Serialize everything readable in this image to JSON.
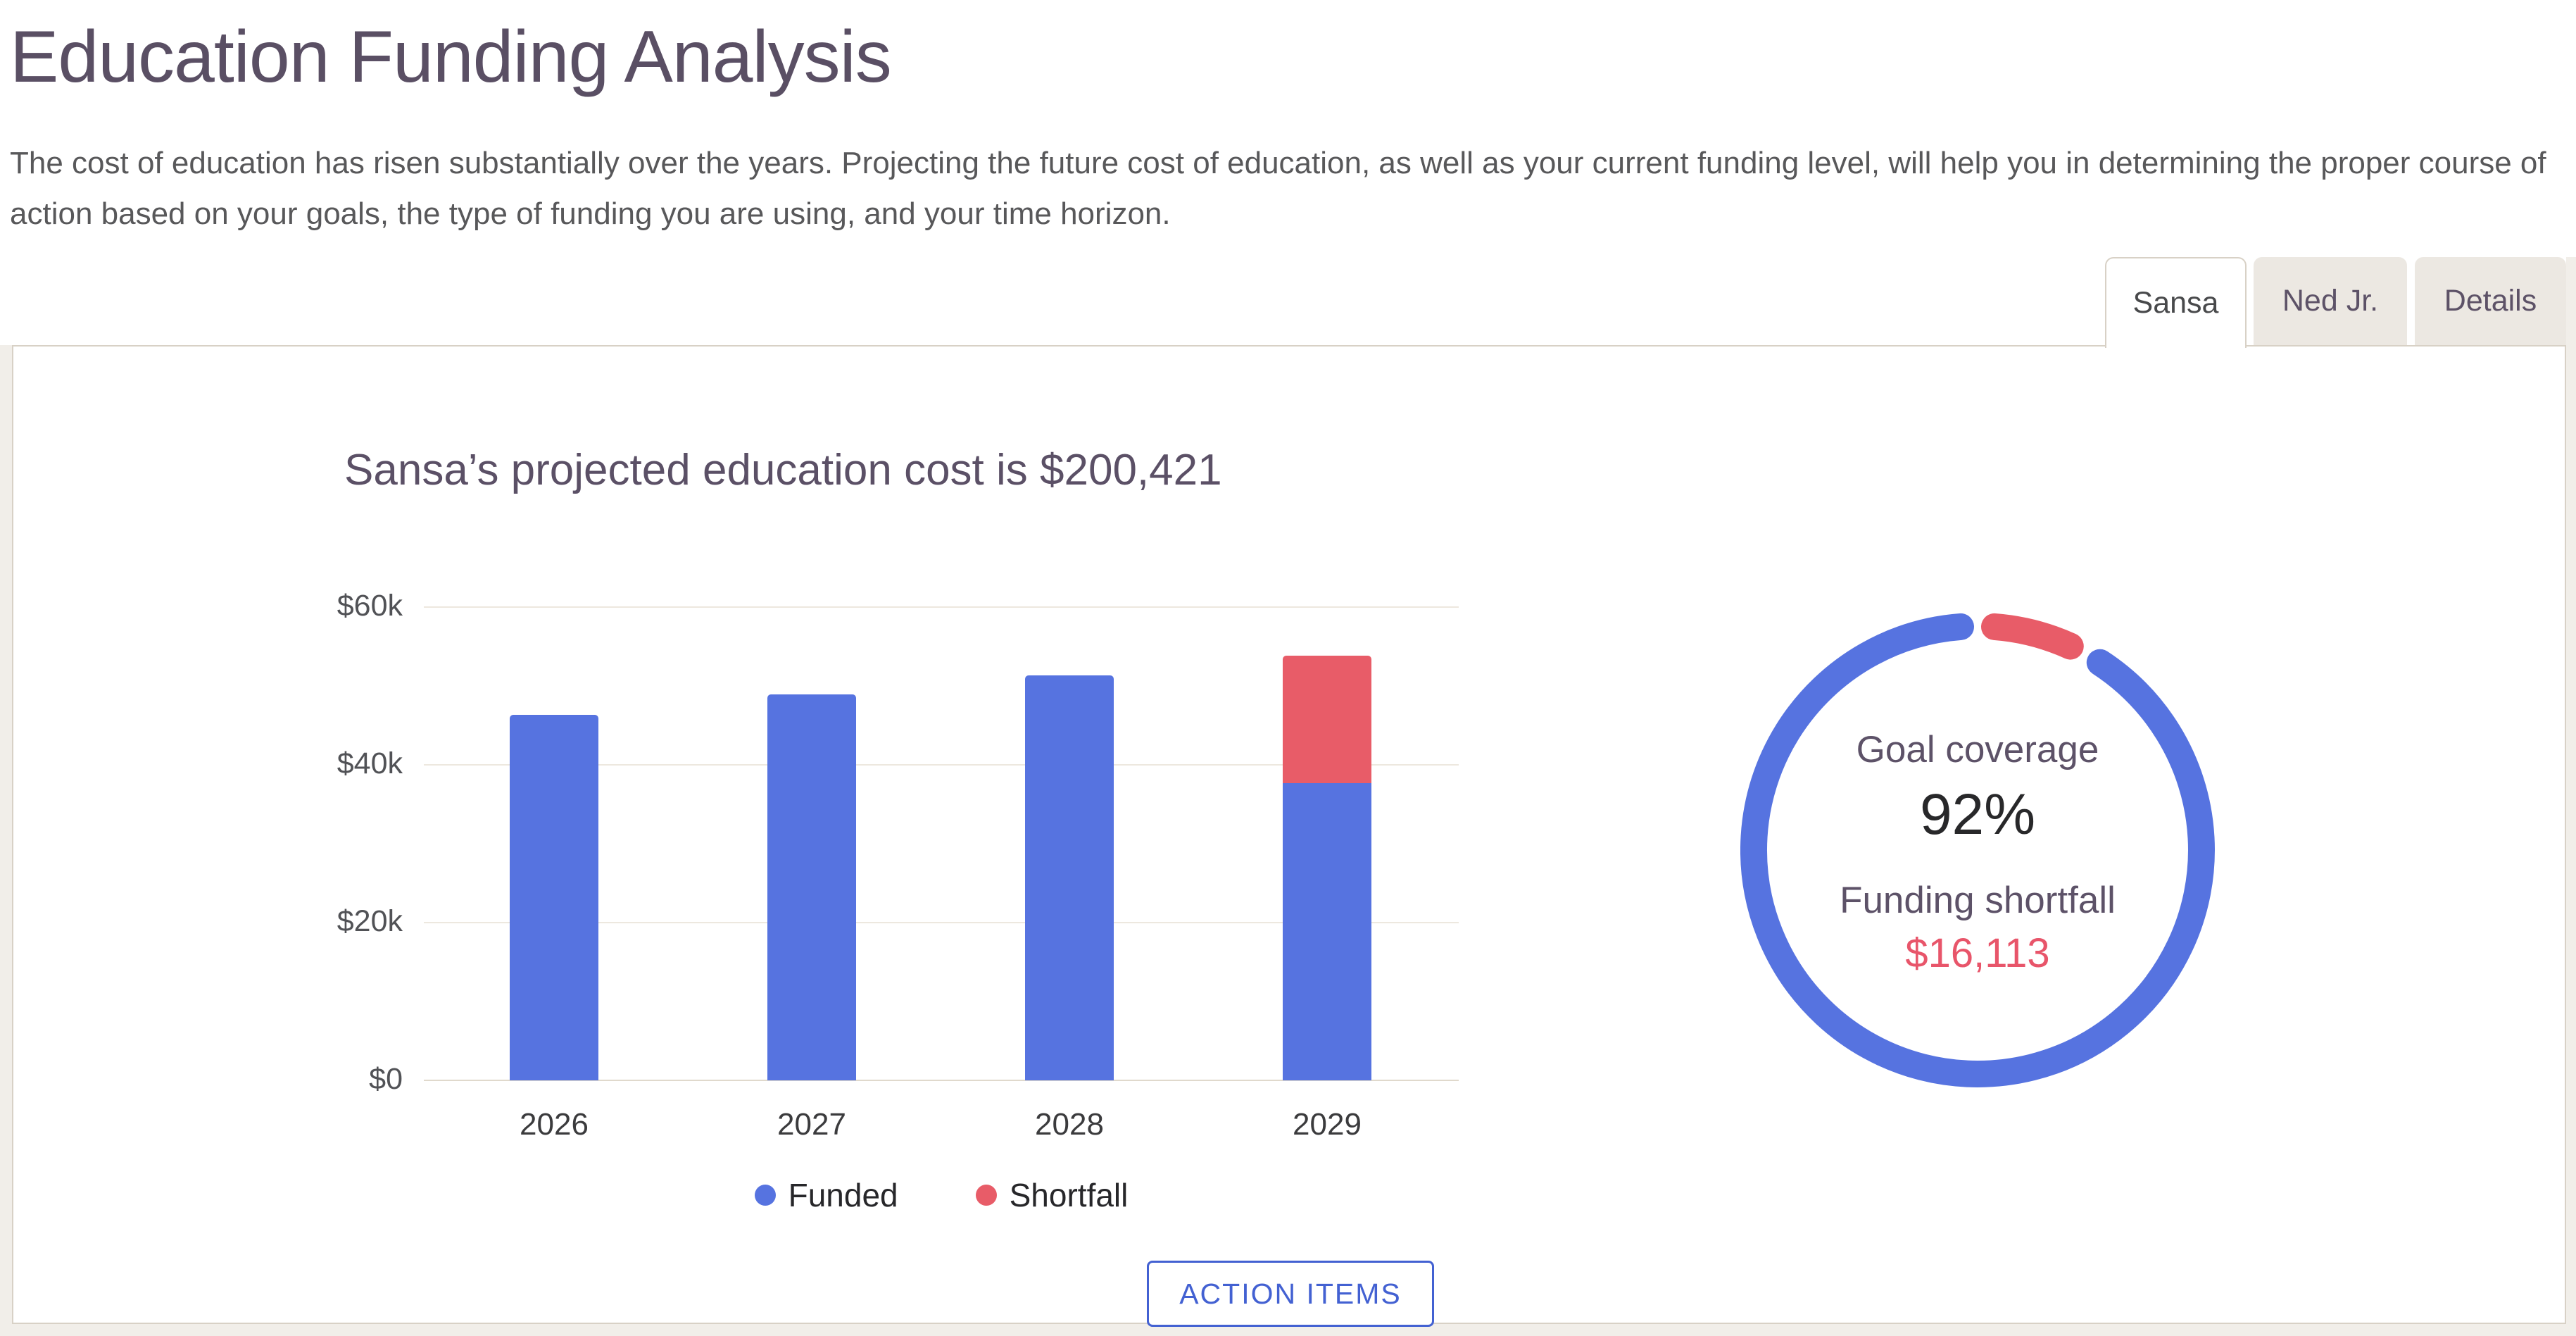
{
  "page": {
    "title": "Education Funding Analysis",
    "description": "The cost of education has risen substantially over the years. Projecting the future cost of education, as well as your current funding level, will help you in determining the proper course of action based on your goals, the type of funding you are using, and your time horizon."
  },
  "tabs": {
    "items": [
      {
        "label": "Sansa",
        "active": true
      },
      {
        "label": "Ned Jr.",
        "active": false
      },
      {
        "label": "Details",
        "active": false
      }
    ]
  },
  "panel": {
    "action_button_label": "ACTION ITEMS"
  },
  "colors": {
    "funded_blue": "#5673e0",
    "shortfall_red": "#e85c68",
    "heading_purple": "#5a4f64",
    "panel_border": "#d8d1c6",
    "inactive_tab_bg": "#ece8e2",
    "button_blue": "#4361d2"
  },
  "chart_data": [
    {
      "type": "bar",
      "stacked": true,
      "title": "Sansa’s projected education cost is $200,421",
      "total_projected_cost": "$200,421",
      "categories": [
        "2026",
        "2027",
        "2028",
        "2029"
      ],
      "series": [
        {
          "name": "Funded",
          "color": "#5673e0",
          "values": [
            46350,
            48950,
            51300,
            37708
          ]
        },
        {
          "name": "Shortfall",
          "color": "#e85c68",
          "values": [
            0,
            0,
            0,
            16113
          ]
        }
      ],
      "y_ticks": [
        "$0",
        "$20k",
        "$40k",
        "$60k"
      ],
      "ylim": [
        0,
        60000
      ],
      "grid": true,
      "legend_position": "bottom"
    },
    {
      "type": "donut",
      "slices": [
        {
          "name": "Funded",
          "value": 92,
          "color": "#5673e0"
        },
        {
          "name": "Shortfall",
          "value": 8,
          "color": "#e85c68"
        }
      ],
      "center": {
        "label_top": "Goal coverage",
        "percent": "92%",
        "label_bottom": "Funding shortfall",
        "amount": "$16,113"
      }
    }
  ]
}
